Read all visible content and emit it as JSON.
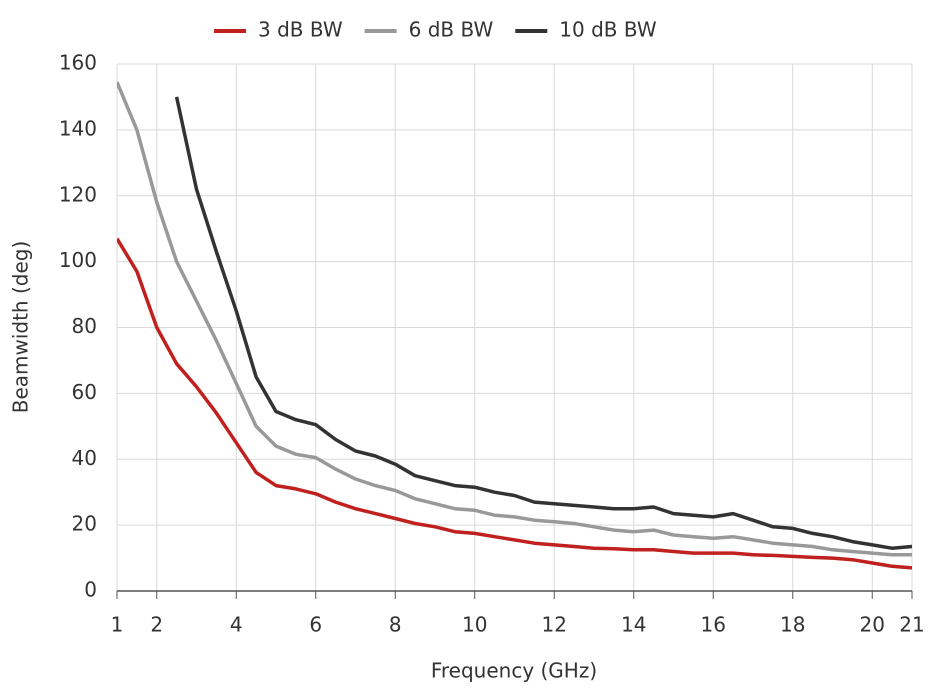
{
  "chart_data": {
    "type": "line",
    "x_label": "Frequency (GHz)",
    "y_label": "Beamwidth (deg)",
    "x": [
      1,
      1.5,
      2,
      2.5,
      3,
      3.5,
      4,
      4.5,
      5,
      5.5,
      6,
      6.5,
      7,
      7.5,
      8,
      8.5,
      9,
      9.5,
      10,
      10.5,
      11,
      11.5,
      12,
      12.5,
      13,
      13.5,
      14,
      14.5,
      15,
      15.5,
      16,
      16.5,
      17,
      17.5,
      18,
      18.5,
      19,
      19.5,
      20,
      20.5,
      21
    ],
    "series": [
      {
        "name": "3 dB BW",
        "color": "#c0201e",
        "values": [
          107,
          97,
          80,
          69,
          62,
          54,
          45,
          36,
          32,
          31,
          29.5,
          27,
          25,
          23.5,
          22,
          20.5,
          19.5,
          18,
          17.5,
          16.5,
          15.5,
          14.5,
          14,
          13.5,
          13,
          12.8,
          12.5,
          12.5,
          12,
          11.5,
          11.5,
          11.5,
          11,
          10.8,
          10.5,
          10.2,
          10,
          9.5,
          8.5,
          7.5,
          7
        ]
      },
      {
        "name": "6 dB BW",
        "color": "#999999",
        "values": [
          154.5,
          140,
          118,
          100,
          88,
          76,
          63,
          50,
          44,
          41.5,
          40.5,
          37,
          34,
          32,
          30.5,
          28,
          26.5,
          25,
          24.5,
          23,
          22.5,
          21.5,
          21,
          20.5,
          19.5,
          18.5,
          18,
          18.5,
          17,
          16.5,
          16,
          16.5,
          15.5,
          14.5,
          14,
          13.5,
          12.5,
          12,
          11.5,
          11,
          11
        ]
      },
      {
        "name": "10 dB BW",
        "color": "#333333",
        "values": [
          null,
          null,
          null,
          150,
          122,
          103,
          85,
          65,
          54.5,
          52,
          50.5,
          46,
          42.5,
          41,
          38.5,
          35,
          33.5,
          32,
          31.5,
          30,
          29,
          27,
          26.5,
          26,
          25.5,
          25,
          25,
          25.5,
          23.5,
          23,
          22.5,
          23.5,
          21.5,
          19.5,
          19,
          17.5,
          16.5,
          15,
          14,
          13,
          13.5
        ]
      }
    ],
    "xlim": [
      1,
      21
    ],
    "xticks": [
      1,
      2,
      4,
      6,
      8,
      10,
      12,
      14,
      16,
      18,
      20,
      21
    ],
    "ylim": [
      0,
      160
    ],
    "yticks": [
      0,
      20,
      40,
      60,
      80,
      100,
      120,
      140,
      160
    ],
    "grid": true,
    "legend": "top"
  }
}
